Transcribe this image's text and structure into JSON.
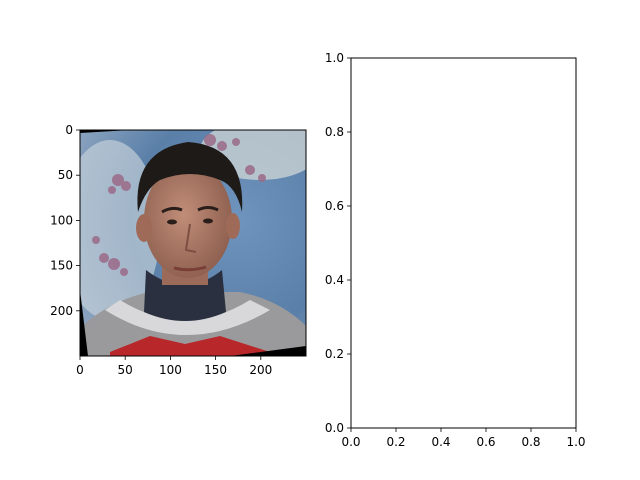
{
  "chart_data": [
    {
      "type": "image",
      "image_subject": "portrait photo of a young man with dark hair wearing a gray sweater with red stripes over a dark turtleneck, blue background with pink blossoms, slightly rotated with black corner fill",
      "xlim": [
        0,
        250
      ],
      "ylim": [
        250,
        0
      ],
      "x_ticks": [
        0,
        50,
        100,
        150,
        200
      ],
      "x_tick_labels": [
        "0",
        "50",
        "100",
        "150",
        "200"
      ],
      "y_ticks": [
        0,
        50,
        100,
        150,
        200
      ],
      "y_tick_labels": [
        "0",
        "50",
        "100",
        "150",
        "200"
      ],
      "title": "",
      "xlabel": "",
      "ylabel": ""
    },
    {
      "type": "empty",
      "xlim": [
        0,
        1
      ],
      "ylim": [
        0,
        1
      ],
      "x_ticks": [
        0,
        0.2,
        0.4,
        0.6,
        0.8,
        1.0
      ],
      "x_tick_labels": [
        "0.0",
        "0.2",
        "0.4",
        "0.6",
        "0.8",
        "1.0"
      ],
      "y_ticks": [
        0,
        0.2,
        0.4,
        0.6,
        0.8,
        1.0
      ],
      "y_tick_labels": [
        "0.0",
        "0.2",
        "0.4",
        "0.6",
        "0.8",
        "1.0"
      ],
      "title": "",
      "xlabel": "",
      "ylabel": ""
    }
  ],
  "colors": {
    "background": "#ffffff",
    "photo_bg_blue": "#5a7fa8",
    "photo_hair": "#1e1a18",
    "photo_skin": "#b07a66",
    "photo_sweater": "#9a9a9c",
    "photo_stripe": "#b8282a",
    "photo_turtleneck": "#2a3040"
  }
}
